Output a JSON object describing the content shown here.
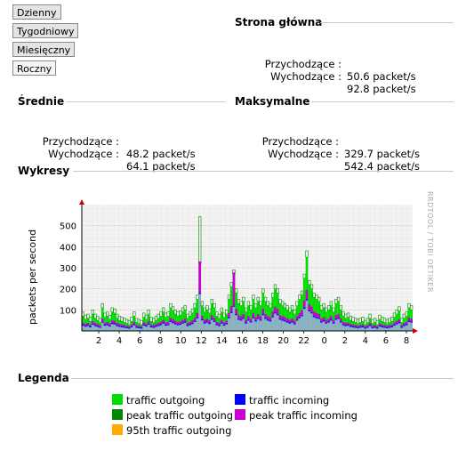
{
  "periods": [
    {
      "label": "Dzienny",
      "active": false
    },
    {
      "label": "Tygodniowy",
      "active": false
    },
    {
      "label": "Miesięczny",
      "active": false
    },
    {
      "label": "Roczny",
      "active": true
    }
  ],
  "main_page": {
    "title": "Strona główna",
    "incoming_label": "Przychodzące :",
    "incoming_value": "50.6 packet/s",
    "outgoing_label": "Wychodzące :",
    "outgoing_value": "92.8 packet/s"
  },
  "average": {
    "title": "Średnie",
    "incoming_label": "Przychodzące :",
    "incoming_value": "48.2 packet/s",
    "outgoing_label": "Wychodzące :",
    "outgoing_value": "64.1 packet/s"
  },
  "maximum": {
    "title": "Maksymalne",
    "incoming_label": "Przychodzące :",
    "incoming_value": "329.7 packet/s",
    "outgoing_label": "Wychodzące :",
    "outgoing_value": "542.4 packet/s"
  },
  "charts_title": "Wykresy",
  "legend_title": "Legenda",
  "chart_data": {
    "type": "bar",
    "title": "",
    "ylabel": "packets per second",
    "watermark": "RRDTOOL / TOBI OETIKER",
    "ylim": [
      0,
      600
    ],
    "y_ticks": [
      100,
      200,
      300,
      400,
      500
    ],
    "x_tick_labels": [
      "2",
      "4",
      "6",
      "8",
      "10",
      "12",
      "14",
      "16",
      "18",
      "20",
      "22",
      "0",
      "2",
      "4",
      "6",
      "8"
    ],
    "grid": true,
    "colors": {
      "traffic_outgoing": "#00dd00",
      "peak_traffic_outgoing": "#008800",
      "traffic_incoming": "#0000ff",
      "peak_traffic_incoming": "#cc00cc",
      "p95_traffic_outgoing": "#ffaa00",
      "area_fill": "#8fb0c8"
    },
    "series": [
      {
        "name": "traffic outgoing",
        "values": [
          70,
          55,
          60,
          45,
          80,
          60,
          50,
          40,
          110,
          65,
          70,
          55,
          90,
          85,
          60,
          50,
          45,
          40,
          35,
          30,
          45,
          70,
          40,
          35,
          30,
          65,
          55,
          80,
          45,
          40,
          50,
          60,
          70,
          90,
          65,
          70,
          110,
          95,
          80,
          70,
          75,
          90,
          100,
          60,
          70,
          85,
          110,
          150,
          320,
          120,
          90,
          100,
          85,
          130,
          110,
          70,
          60,
          90,
          65,
          80,
          150,
          210,
          270,
          180,
          130,
          120,
          140,
          90,
          120,
          100,
          150,
          110,
          140,
          120,
          180,
          140,
          120,
          110,
          160,
          200,
          180,
          130,
          120,
          110,
          100,
          90,
          100,
          80,
          120,
          150,
          170,
          250,
          350,
          220,
          200,
          160,
          150,
          140,
          100,
          110,
          90,
          100,
          120,
          90,
          130,
          140,
          100,
          70,
          60,
          65,
          50,
          45,
          40,
          35,
          40,
          45,
          30,
          40,
          60,
          35,
          40,
          30,
          55,
          45,
          40,
          35,
          40,
          45,
          65,
          80,
          95,
          40,
          60,
          70,
          110,
          100
        ]
      },
      {
        "name": "peak traffic outgoing",
        "values": [
          90,
          75,
          80,
          65,
          100,
          80,
          70,
          60,
          130,
          85,
          90,
          75,
          110,
          105,
          80,
          70,
          65,
          60,
          55,
          50,
          65,
          90,
          60,
          55,
          50,
          85,
          75,
          100,
          65,
          60,
          70,
          80,
          90,
          110,
          85,
          90,
          130,
          115,
          100,
          90,
          95,
          110,
          120,
          80,
          90,
          105,
          130,
          170,
          542,
          140,
          110,
          120,
          105,
          150,
          130,
          90,
          80,
          110,
          85,
          100,
          170,
          230,
          290,
          200,
          150,
          140,
          160,
          110,
          140,
          120,
          170,
          130,
          160,
          140,
          200,
          160,
          140,
          130,
          180,
          220,
          200,
          150,
          140,
          130,
          120,
          110,
          120,
          100,
          140,
          170,
          190,
          270,
          380,
          240,
          220,
          180,
          170,
          160,
          120,
          130,
          110,
          120,
          140,
          110,
          150,
          160,
          120,
          90,
          80,
          85,
          70,
          65,
          60,
          55,
          60,
          65,
          50,
          60,
          80,
          55,
          60,
          50,
          75,
          65,
          60,
          55,
          60,
          65,
          85,
          100,
          115,
          60,
          80,
          90,
          130,
          120
        ]
      },
      {
        "name": "traffic incoming",
        "values": [
          30,
          25,
          28,
          22,
          35,
          28,
          24,
          20,
          45,
          30,
          32,
          26,
          38,
          36,
          28,
          24,
          22,
          20,
          18,
          16,
          22,
          32,
          20,
          18,
          16,
          30,
          26,
          35,
          22,
          20,
          24,
          28,
          32,
          40,
          30,
          32,
          48,
          42,
          36,
          32,
          34,
          40,
          44,
          28,
          32,
          38,
          48,
          65,
          180,
          55,
          40,
          45,
          38,
          58,
          48,
          32,
          28,
          40,
          30,
          36,
          65,
          90,
          120,
          80,
          58,
          54,
          62,
          40,
          54,
          45,
          65,
          50,
          62,
          54,
          80,
          62,
          54,
          50,
          70,
          88,
          80,
          58,
          54,
          50,
          45,
          40,
          45,
          36,
          54,
          65,
          75,
          110,
          150,
          98,
          88,
          70,
          65,
          62,
          45,
          50,
          40,
          45,
          54,
          40,
          58,
          62,
          45,
          32,
          28,
          30,
          24,
          22,
          20,
          18,
          20,
          22,
          16,
          20,
          28,
          18,
          20,
          16,
          26,
          22,
          20,
          18,
          20,
          22,
          30,
          36,
          42,
          20,
          28,
          32,
          48,
          45
        ]
      },
      {
        "name": "peak traffic incoming",
        "values": [
          40,
          34,
          38,
          30,
          46,
          38,
          33,
          28,
          58,
          40,
          42,
          35,
          50,
          48,
          38,
          33,
          30,
          28,
          25,
          22,
          30,
          42,
          28,
          25,
          22,
          40,
          35,
          46,
          30,
          28,
          33,
          38,
          42,
          52,
          40,
          42,
          62,
          55,
          48,
          42,
          45,
          52,
          58,
          38,
          42,
          50,
          62,
          85,
          330,
          72,
          52,
          58,
          50,
          75,
          62,
          42,
          38,
          52,
          40,
          48,
          85,
          118,
          278,
          105,
          75,
          70,
          80,
          52,
          70,
          58,
          85,
          65,
          80,
          70,
          105,
          80,
          70,
          65,
          92,
          115,
          105,
          75,
          70,
          65,
          58,
          52,
          58,
          48,
          70,
          85,
          98,
          145,
          195,
          128,
          115,
          92,
          85,
          80,
          58,
          65,
          52,
          58,
          70,
          52,
          75,
          80,
          58,
          42,
          38,
          40,
          32,
          30,
          28,
          25,
          28,
          30,
          22,
          28,
          38,
          25,
          28,
          22,
          35,
          30,
          28,
          25,
          28,
          30,
          40,
          48,
          55,
          28,
          38,
          42,
          62,
          58
        ]
      },
      {
        "name": "95th traffic outgoing",
        "values": []
      }
    ],
    "legend": [
      {
        "name": "traffic outgoing",
        "color": "#00dd00"
      },
      {
        "name": "traffic incoming",
        "color": "#0000ff"
      },
      {
        "name": "peak traffic outgoing",
        "color": "#008800"
      },
      {
        "name": "peak traffic incoming",
        "color": "#cc00cc"
      },
      {
        "name": "95th traffic outgoing",
        "color": "#ffaa00"
      }
    ]
  }
}
